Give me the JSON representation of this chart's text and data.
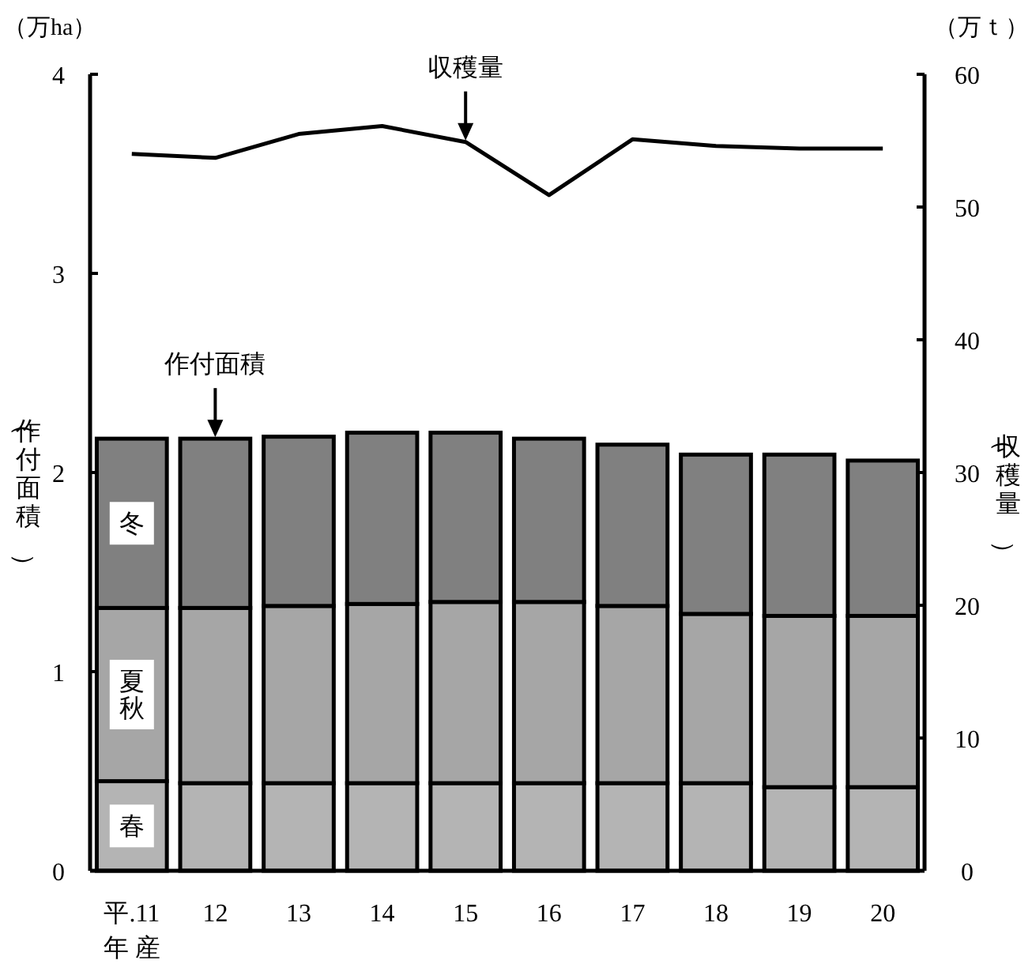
{
  "chart_data": {
    "type": "bar",
    "stacked": true,
    "categories": [
      "平.11",
      "12",
      "13",
      "14",
      "15",
      "16",
      "17",
      "18",
      "19",
      "20"
    ],
    "xlabel": "年 産",
    "ylabel": "（作付面積）",
    "y2label": "（収穫量）",
    "ylim": [
      0,
      4
    ],
    "yticks": [
      0,
      1,
      2,
      3,
      4
    ],
    "y2lim": [
      0,
      60
    ],
    "y2ticks": [
      0,
      10,
      20,
      30,
      40,
      50,
      60
    ],
    "series": [
      {
        "name": "春",
        "color": "#b4b4b4",
        "values": [
          0.45,
          0.44,
          0.44,
          0.44,
          0.44,
          0.44,
          0.44,
          0.44,
          0.42,
          0.42
        ]
      },
      {
        "name": "夏秋",
        "color": "#a6a6a6",
        "values": [
          0.87,
          0.88,
          0.89,
          0.9,
          0.91,
          0.91,
          0.89,
          0.85,
          0.86,
          0.86
        ]
      },
      {
        "name": "冬",
        "color": "#808080",
        "values": [
          0.85,
          0.85,
          0.85,
          0.86,
          0.85,
          0.82,
          0.81,
          0.8,
          0.81,
          0.78
        ]
      },
      {
        "type": "line",
        "axis": "y2",
        "color": "#000000",
        "values": [
          54.0,
          53.7,
          55.5,
          56.1,
          54.9,
          50.9,
          55.1,
          54.6,
          54.4,
          54.4
        ]
      }
    ],
    "annotations": [
      {
        "text": "作付面積",
        "x": "12",
        "y": 2.17
      },
      {
        "text": "収穫量",
        "x": "15",
        "y": 3.66
      },
      "（万ha）",
      "（万ｔ）"
    ],
    "grid": false
  }
}
